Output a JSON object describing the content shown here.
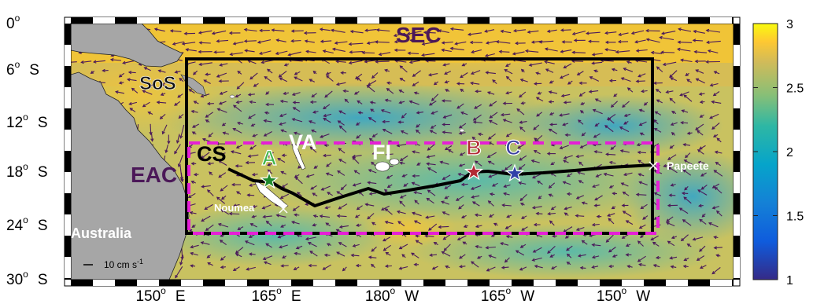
{
  "map": {
    "y_ticks": [
      {
        "deg": "0",
        "hemi": ""
      },
      {
        "deg": "6",
        "hemi": "S"
      },
      {
        "deg": "12",
        "hemi": "S"
      },
      {
        "deg": "18",
        "hemi": "S"
      },
      {
        "deg": "24",
        "hemi": "S"
      },
      {
        "deg": "30",
        "hemi": "S"
      }
    ],
    "x_ticks": [
      {
        "deg": "150",
        "hemi": "E"
      },
      {
        "deg": "165",
        "hemi": "E"
      },
      {
        "deg": "180",
        "hemi": "W"
      },
      {
        "deg": "165",
        "hemi": "W"
      },
      {
        "deg": "150",
        "hemi": "W"
      }
    ],
    "labels": {
      "sec": "SEC",
      "sos": "SoS",
      "eac": "EAC",
      "cs": "CS",
      "va": "VA",
      "fi": "FI",
      "australia": "Australia",
      "noumea": "Noumea",
      "papeete": "Papeete"
    },
    "stations": [
      {
        "id": "A",
        "letter_color": "#3fb54a",
        "star_color": "#1f8a2c"
      },
      {
        "id": "B",
        "letter_color": "#b22a35",
        "star_color": "#b22a35"
      },
      {
        "id": "C",
        "letter_color": "#3a3fa0",
        "star_color": "#3140a8"
      }
    ],
    "scale_vector": {
      "label": "10 cm s",
      "superscript": "-1"
    },
    "colors": {
      "land": "#a6a6a6",
      "box": "#000000",
      "dashed_box": "#e51fd6",
      "arrows": "#4a1a5a",
      "track": "#000000"
    }
  },
  "colorbar": {
    "ticks": [
      "3",
      "2.5",
      "2",
      "1.5",
      "1"
    ],
    "range": [
      1,
      3
    ],
    "colormap": "parula"
  }
}
